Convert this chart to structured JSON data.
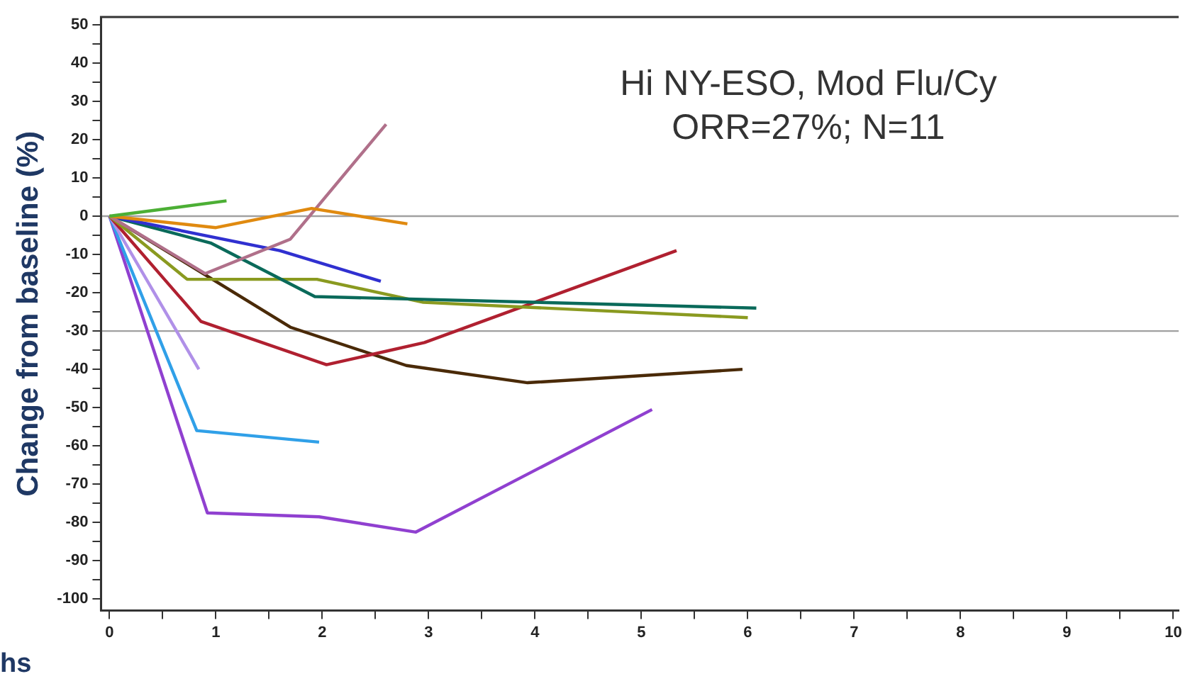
{
  "chart_data": {
    "type": "line",
    "title": "Hi NY-ESO, Mod Flu/Cy",
    "subtitle": "ORR=27%; N=11",
    "xlabel": "hs",
    "ylabel": "Change from baseline (%)",
    "xlim": [
      -0.08,
      10.05
    ],
    "xticks": [
      0,
      {
        "value": 0.5,
        "label": null
      },
      1,
      {
        "value": 1.5,
        "label": null
      },
      2,
      {
        "value": 2.5,
        "label": null
      },
      3,
      {
        "value": 3.5,
        "label": null
      },
      4,
      {
        "value": 4.5,
        "label": null
      },
      5,
      {
        "value": 5.5,
        "label": null
      },
      6,
      {
        "value": 6.5,
        "label": null
      },
      7,
      {
        "value": 7.5,
        "label": null
      },
      8,
      {
        "value": 8.5,
        "label": null
      },
      9,
      {
        "value": 9.5,
        "label": null
      },
      10
    ],
    "ylim": [
      -103,
      52
    ],
    "yticks": [
      -100,
      {
        "value": -95,
        "label": null
      },
      -90,
      {
        "value": -85,
        "label": null
      },
      -80,
      {
        "value": -75,
        "label": null
      },
      -70,
      {
        "value": -65,
        "label": null
      },
      -60,
      {
        "value": -55,
        "label": null
      },
      -50,
      {
        "value": -45,
        "label": null
      },
      -40,
      {
        "value": -35,
        "label": null
      },
      -30,
      {
        "value": -25,
        "label": null
      },
      -20,
      {
        "value": -15,
        "label": null
      },
      -10,
      {
        "value": -5,
        "label": null
      },
      0,
      {
        "value": 5,
        "label": null
      },
      10,
      {
        "value": 15,
        "label": null
      },
      20,
      {
        "value": 25,
        "label": null
      },
      30,
      {
        "value": 35,
        "label": null
      },
      40,
      {
        "value": 45,
        "label": null
      },
      50
    ],
    "grid": false,
    "legend": false,
    "marker": "none",
    "line_style": "solid",
    "ref_lines": [
      {
        "axis": "y",
        "value": 0,
        "color": "#a0a0a0"
      },
      {
        "axis": "y",
        "value": -30,
        "color": "#a0a0a0"
      }
    ],
    "series": [
      {
        "color": "#4caf35",
        "x": [
          0,
          1.1
        ],
        "values": [
          0,
          4
        ]
      },
      {
        "color": "#e08a10",
        "x": [
          0,
          1.0,
          1.9,
          2.8
        ],
        "values": [
          0,
          -3,
          2,
          -2
        ]
      },
      {
        "color": "#b0708a",
        "x": [
          0,
          0.9,
          1.7,
          2.6
        ],
        "values": [
          0,
          -15,
          -6,
          24
        ]
      },
      {
        "color": "#3030d0",
        "x": [
          0,
          1.6,
          2.55
        ],
        "values": [
          0,
          -9,
          -17
        ]
      },
      {
        "color": "#0a6a5a",
        "x": [
          0,
          0.95,
          1.93,
          6.08
        ],
        "values": [
          0,
          -7,
          -21,
          -24
        ]
      },
      {
        "color": "#8a9a20",
        "x": [
          0,
          0.73,
          1.95,
          2.95,
          6.0
        ],
        "values": [
          0,
          -16.5,
          -16.5,
          -22.5,
          -26.5
        ]
      },
      {
        "color": "#b02030",
        "x": [
          0,
          0.86,
          2.04,
          2.96,
          5.33
        ],
        "values": [
          0,
          -27.5,
          -38.8,
          -33,
          -9
        ]
      },
      {
        "color": "#4a2a08",
        "x": [
          0,
          1.7,
          2.79,
          3.93,
          5.95
        ],
        "values": [
          0,
          -29,
          -39,
          -43.5,
          -40
        ]
      },
      {
        "color": "#b090e8",
        "x": [
          0,
          0.84
        ],
        "values": [
          0,
          -40
        ]
      },
      {
        "color": "#30a0e8",
        "x": [
          0,
          0.82,
          1.97
        ],
        "values": [
          0,
          -56,
          -59
        ]
      },
      {
        "color": "#9040d0",
        "x": [
          0,
          0.92,
          1.97,
          2.88,
          5.1
        ],
        "values": [
          0,
          -77.5,
          -78.5,
          -82.5,
          -50.5
        ]
      }
    ]
  }
}
